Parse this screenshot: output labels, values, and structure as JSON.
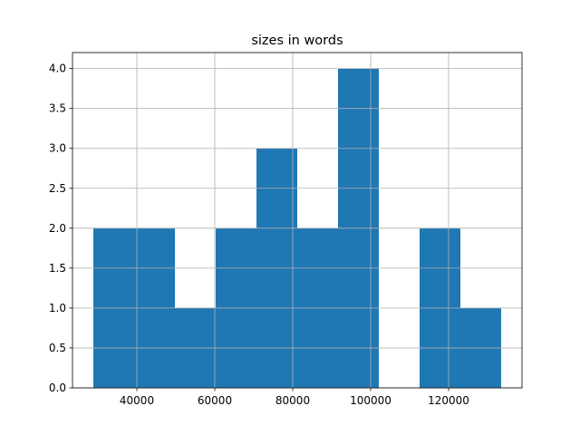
{
  "chart_data": {
    "type": "histogram",
    "title": "sizes in words",
    "bins": [
      28840,
      39305,
      49770,
      60235,
      70700,
      81165,
      91630,
      102095,
      112560,
      123025,
      133490
    ],
    "counts": [
      2,
      2,
      1,
      2,
      3,
      2,
      4,
      0,
      2,
      1
    ],
    "color": "#1f77b4",
    "xlim": [
      23488,
      138837
    ],
    "xticks": [
      40000,
      60000,
      80000,
      100000,
      120000
    ],
    "ylim": [
      0,
      4.2
    ],
    "yticks": [
      {
        "value": 0,
        "label": "0.0"
      },
      0.5,
      {
        "value": 1,
        "label": "1.0"
      },
      1.5,
      {
        "value": 2,
        "label": "2.0"
      },
      2.5,
      {
        "value": 3,
        "label": "3.0"
      },
      3.5,
      {
        "value": 4,
        "label": "4.0"
      }
    ],
    "grid": true
  }
}
